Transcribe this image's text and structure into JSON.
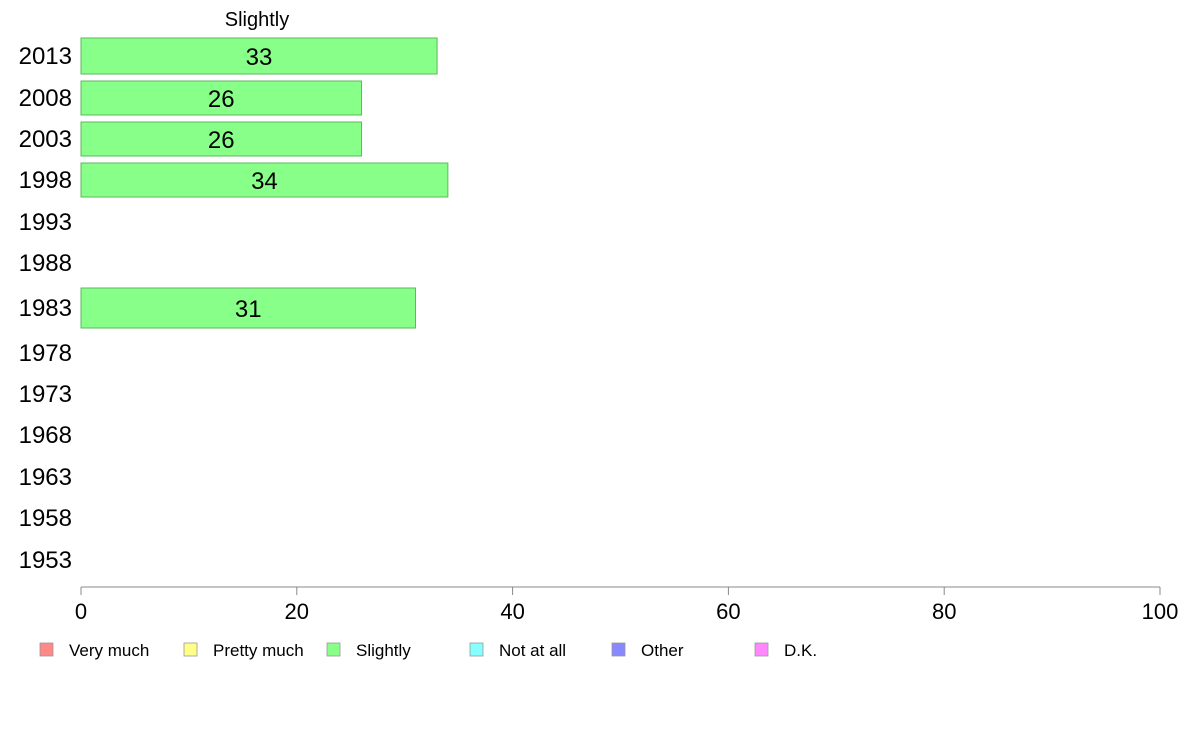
{
  "chart_data": {
    "type": "bar",
    "orientation": "horizontal",
    "title": "Slightly",
    "categories": [
      "2013",
      "2008",
      "2003",
      "1998",
      "1993",
      "1988",
      "1983",
      "1978",
      "1973",
      "1968",
      "1963",
      "1958",
      "1953"
    ],
    "series": [
      {
        "name": "Slightly",
        "color": "#88ff88",
        "values": [
          33,
          26,
          26,
          34,
          null,
          null,
          31,
          null,
          null,
          null,
          null,
          null,
          null
        ]
      }
    ],
    "xlim": [
      0,
      100
    ],
    "xticks": [
      "0",
      "20",
      "40",
      "60",
      "80",
      "100"
    ],
    "grid": false,
    "legend": {
      "placement": "bottom",
      "items": [
        {
          "label": "Very much",
          "color": "#ff8888"
        },
        {
          "label": "Pretty much",
          "color": "#ffff88"
        },
        {
          "label": "Slightly",
          "color": "#88ff88"
        },
        {
          "label": "Not at all",
          "color": "#88ffff"
        },
        {
          "label": "Other",
          "color": "#8888ff"
        },
        {
          "label": "D.K.",
          "color": "#ff88ff"
        }
      ]
    }
  }
}
